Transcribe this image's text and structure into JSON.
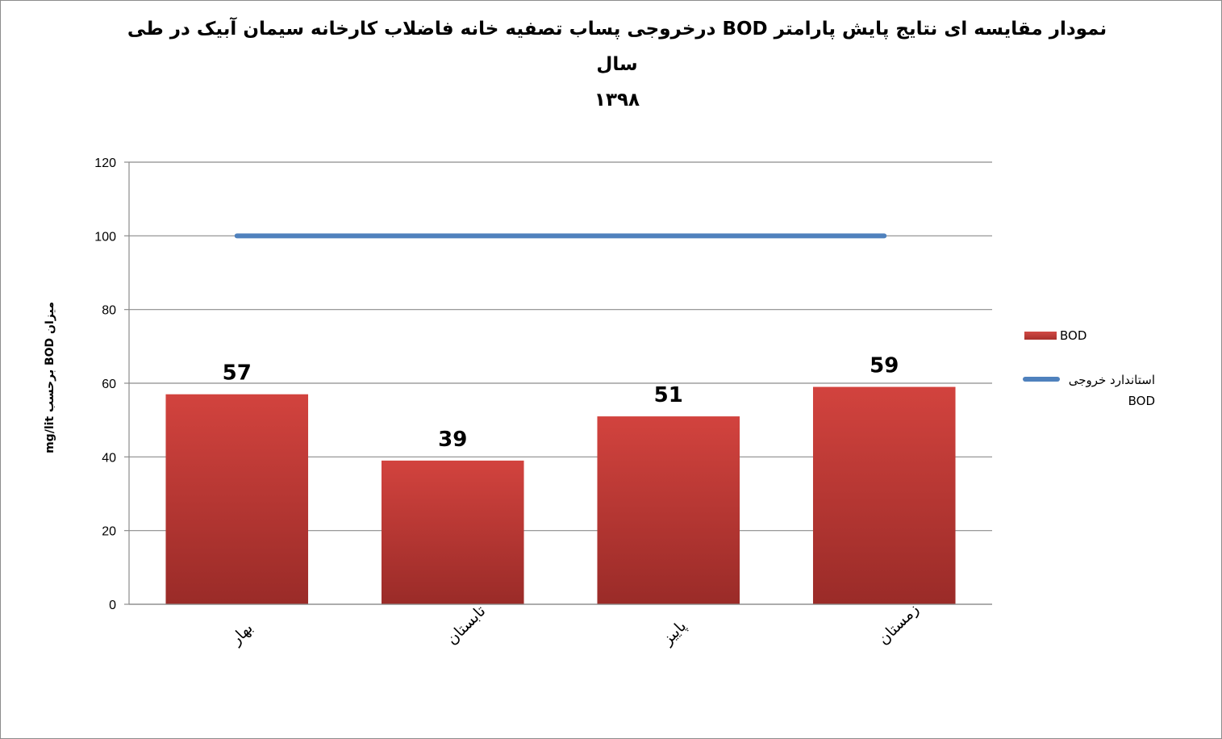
{
  "chart_data": {
    "type": "bar",
    "title_line1": "نمودار مقایسه ای نتایج پایش پارامتر BOD درخروجی پساب تصفیه خانه فاضلاب کارخانه سیمان آبیک در طی سال",
    "title_line2": "۱۳۹۸",
    "ylabel": "میزان BOD برحسب mg/lit",
    "xlabel": "",
    "categories": [
      "بهار",
      "تابستان",
      "پاییز",
      "زمستان"
    ],
    "series": [
      {
        "name": "BOD",
        "kind": "bar",
        "values": [
          57,
          39,
          51,
          59
        ],
        "color": "#c0392f"
      },
      {
        "name": "استاندارد خروجی BOD",
        "kind": "line",
        "values": [
          100,
          100,
          100,
          100
        ],
        "color": "#4f81bd"
      }
    ],
    "ylim": [
      0,
      120
    ],
    "yticks": [
      0,
      20,
      40,
      60,
      80,
      100,
      120
    ],
    "grid": true,
    "legend_position": "right"
  }
}
